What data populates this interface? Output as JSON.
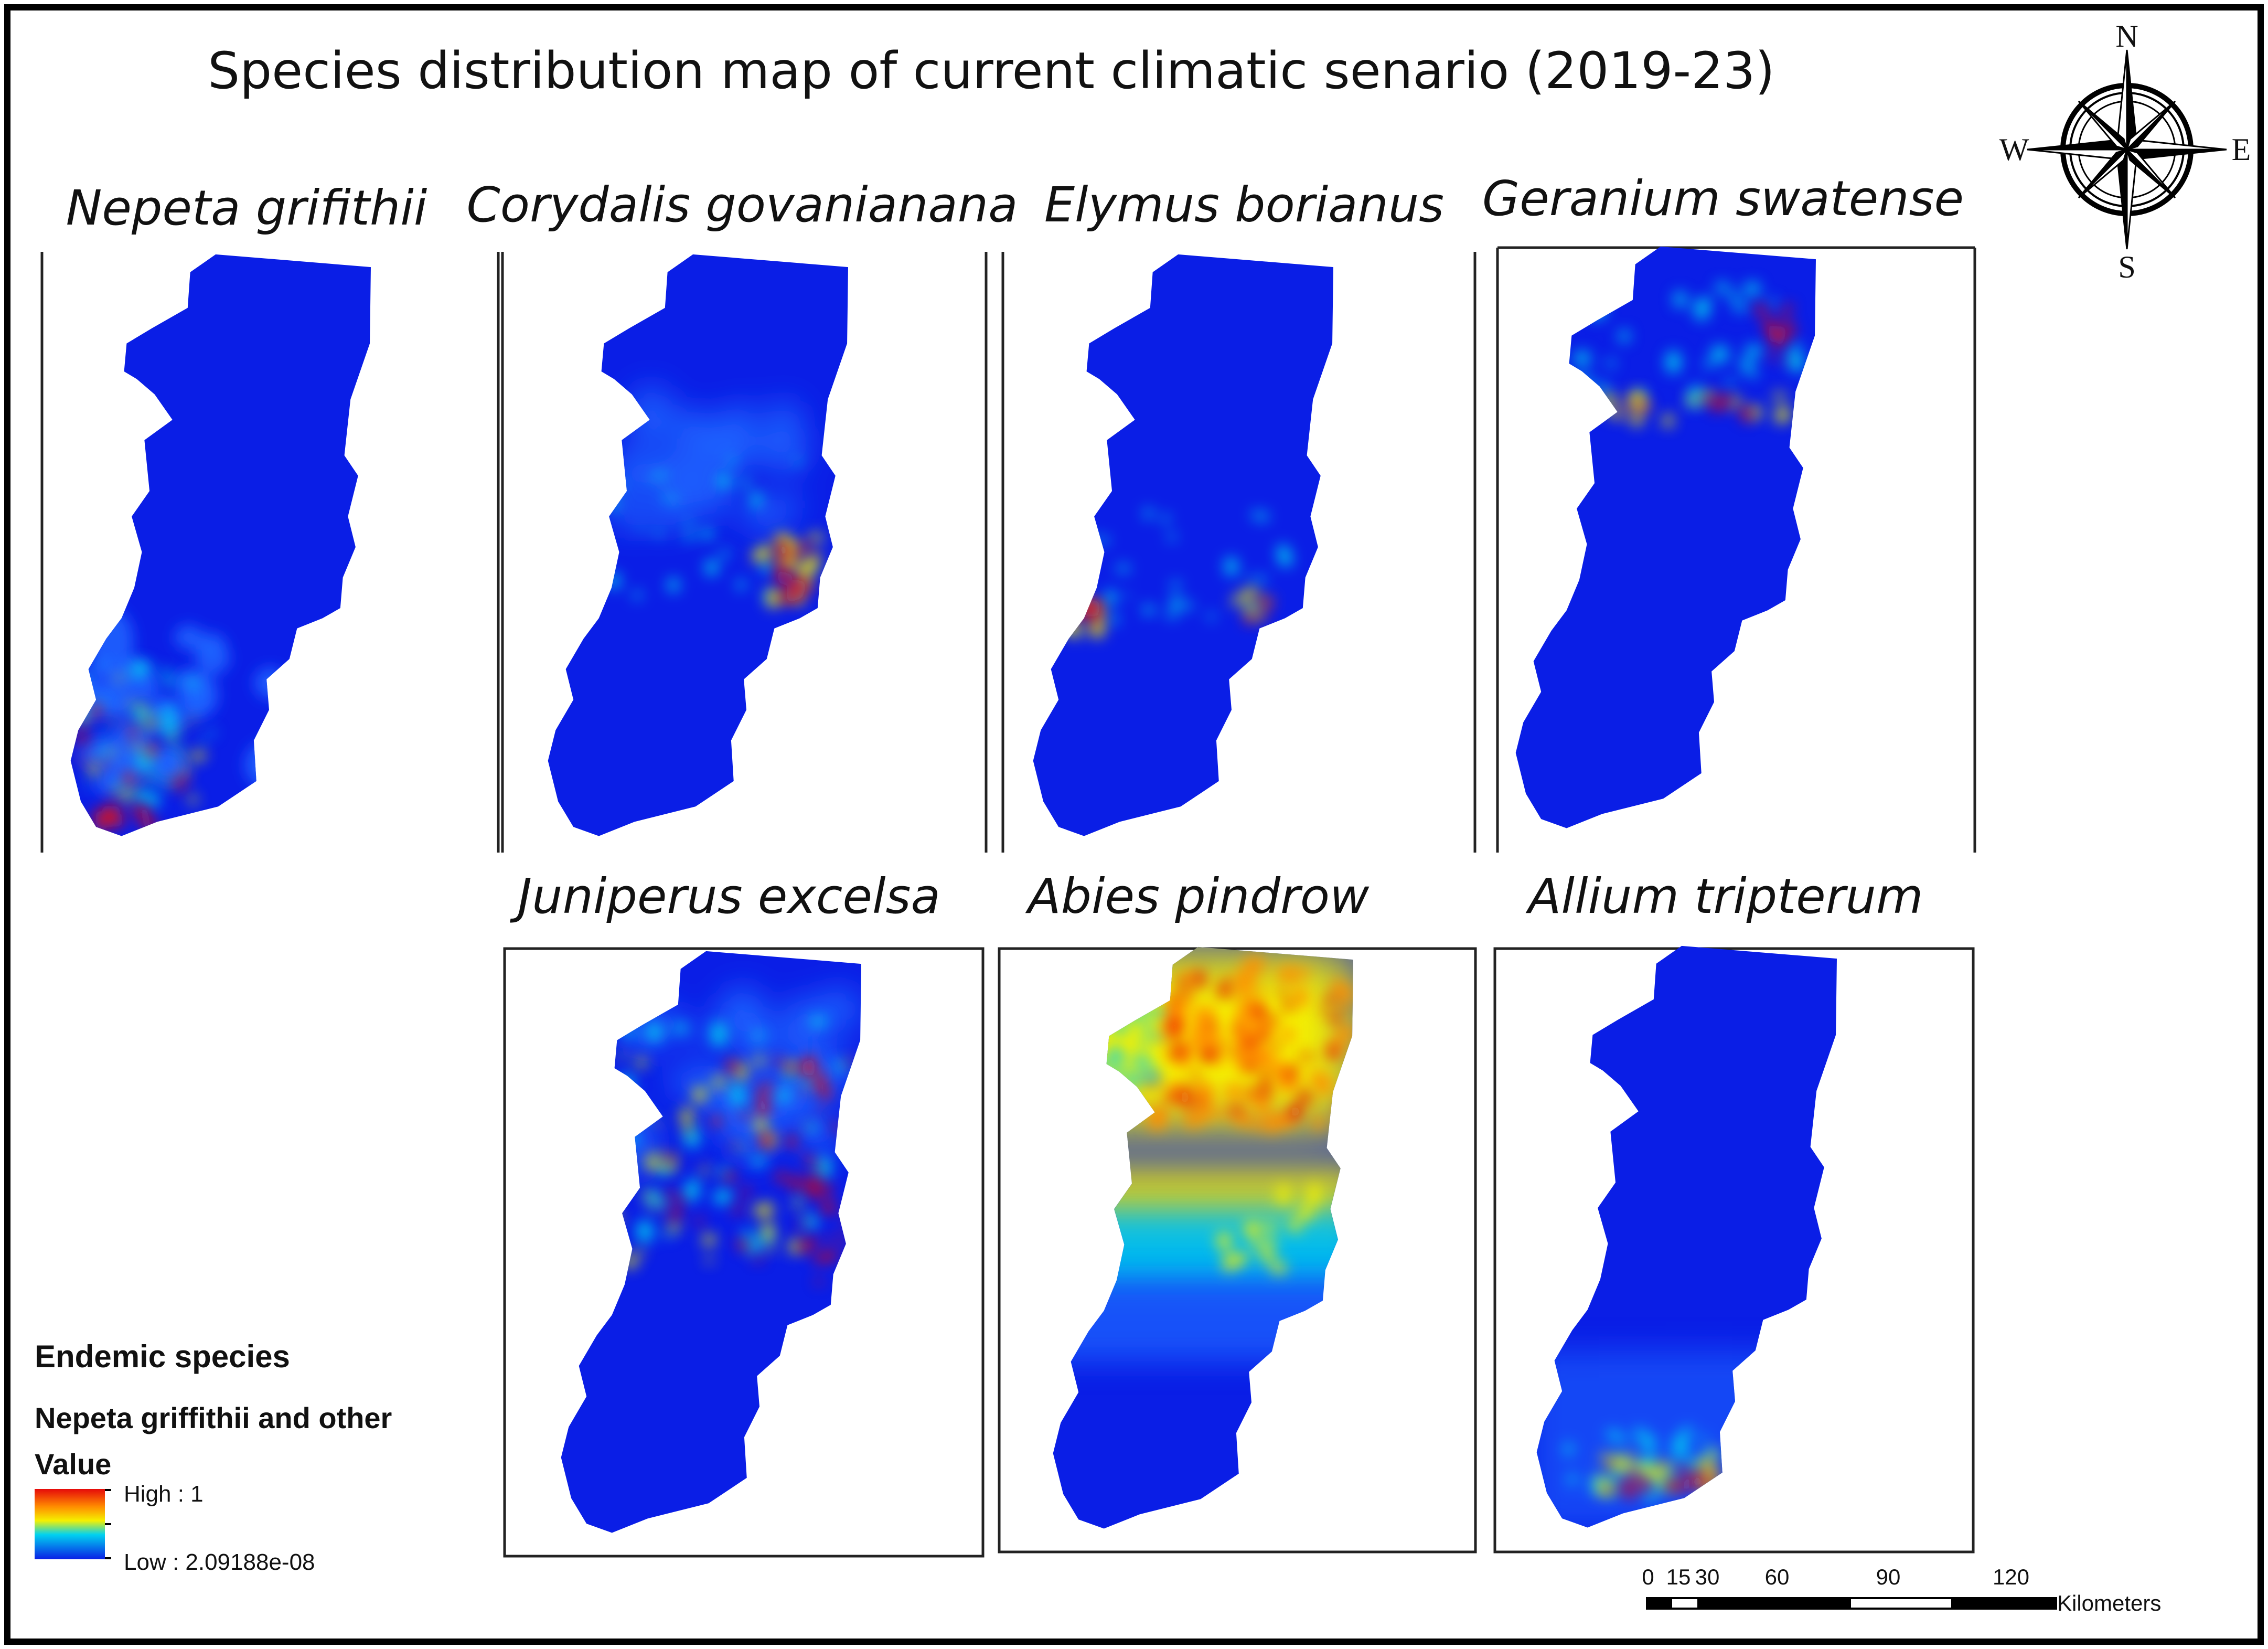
{
  "title": "Species distribution map of current climatic senario (2019-23)",
  "colors": {
    "low": "#0a1ee6",
    "mid_blue": "#1e64ff",
    "cyan": "#00d2f0",
    "yellow": "#f5f000",
    "orange": "#ff8c00",
    "high": "#e60a0a",
    "frame": "#000000"
  },
  "panels": [
    {
      "id": "nepeta",
      "species": "Nepeta grifithii",
      "hotspot": "southwest"
    },
    {
      "id": "corydalis",
      "species": "Corydalis govanianana",
      "hotspot": "east-middle"
    },
    {
      "id": "elymus",
      "species": "Elymus borianus",
      "hotspot": "middle"
    },
    {
      "id": "geranium",
      "species": "Geranium swatense",
      "hotspot": "north"
    },
    {
      "id": "juniperus",
      "species": "Juniperus excelsa",
      "hotspot": "north-middle"
    },
    {
      "id": "abies",
      "species": "Abies pindrow",
      "hotspot": "north-wide"
    },
    {
      "id": "allium",
      "species": "Allium tripterum",
      "hotspot": "south"
    }
  ],
  "legend": {
    "heading": "Endemic species",
    "layer": "Nepeta griffithii and other",
    "field": "Value",
    "high_label": "High : 1",
    "low_label": "Low : 2.09188e-08"
  },
  "scale_bar": {
    "ticks": [
      "0",
      "15",
      "30",
      "60",
      "90",
      "120"
    ],
    "unit": "Kilometers"
  },
  "compass": {
    "north": "N",
    "south": "S",
    "east": "E",
    "west": "W",
    "icon": "compass-rose-icon"
  }
}
